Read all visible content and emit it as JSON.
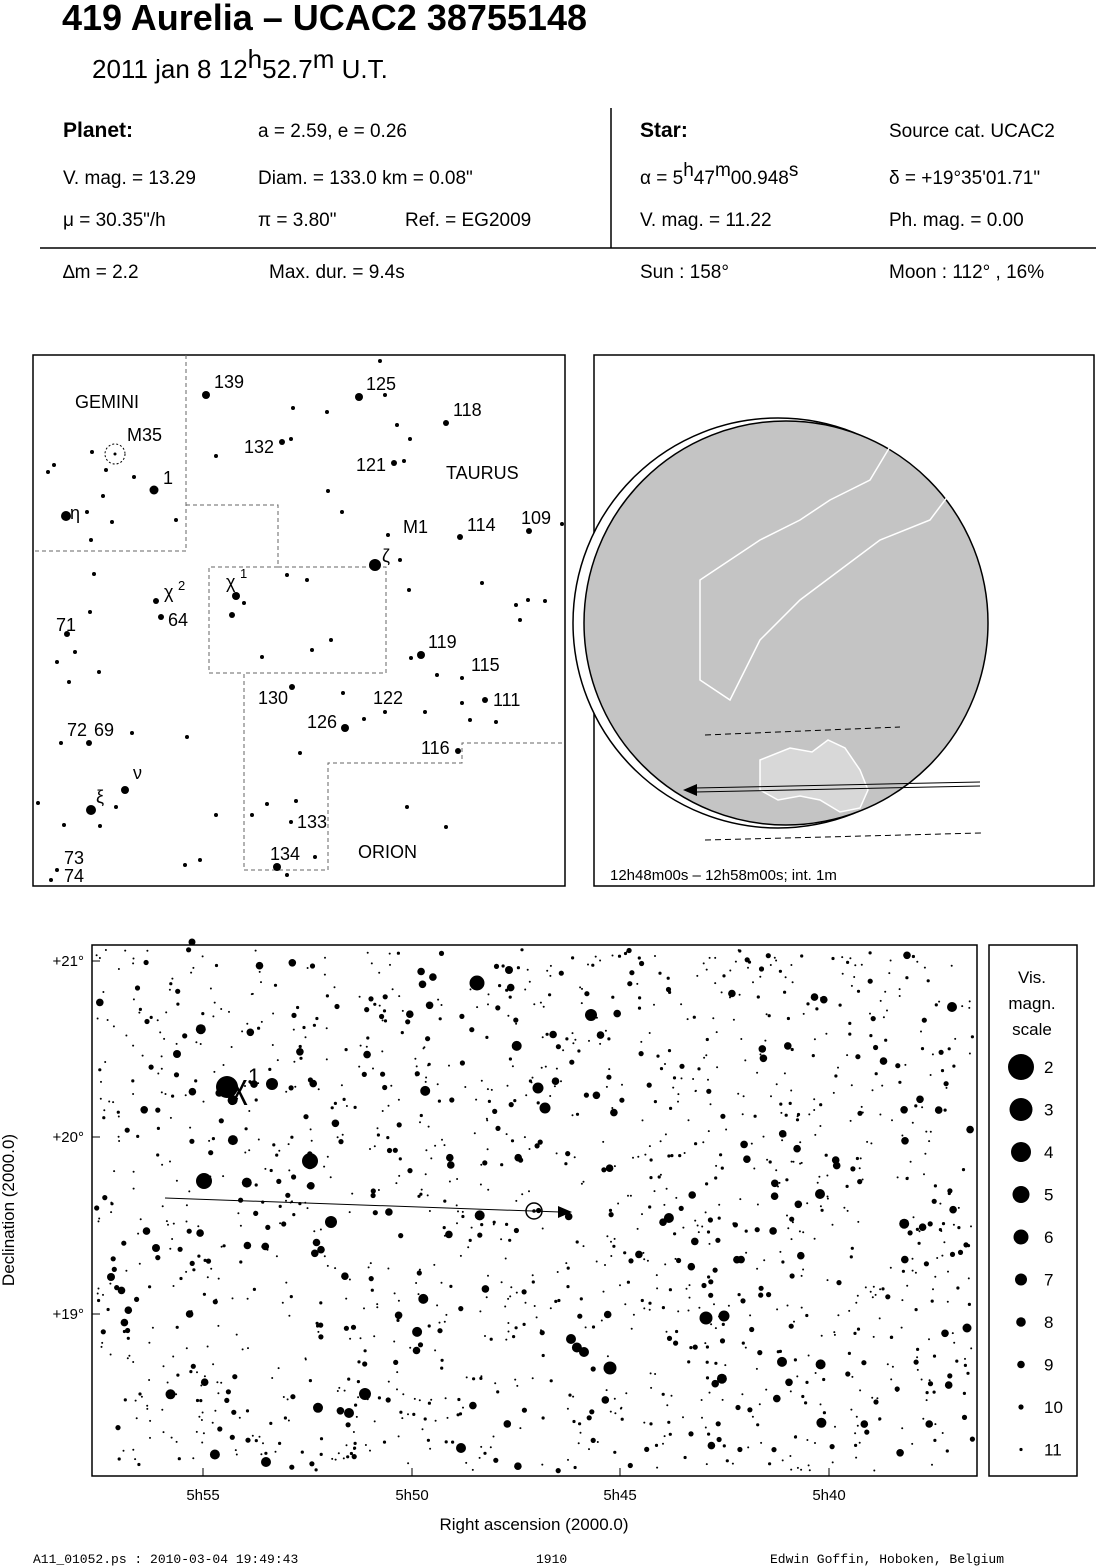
{
  "header": {
    "title": "419 Aurelia  –  UCAC2 38755148",
    "date": [
      "2011 jan  8  12",
      "h",
      "52.7",
      "m",
      " U.T."
    ]
  },
  "info": {
    "planet": {
      "label": "Planet:",
      "orbit": "a = 2.59, e = 0.26",
      "vmag": "V. mag. = 13.29",
      "diam": "Diam. = 133.0 km = 0.08\"",
      "motion": "μ =  30.35\"/h",
      "parallax": "π =  3.80\"",
      "ref": "Ref. = EG2009"
    },
    "star": {
      "label": "Star:",
      "source": "Source cat.  UCAC2",
      "alpha": [
        "α =  5",
        "h",
        "47",
        "m",
        "00.948",
        "s"
      ],
      "delta": "δ = +19°35'01.71\"",
      "vmag": "V. mag. = 11.22",
      "phmag": "Ph. mag. =  0.00"
    },
    "event": {
      "dm": "∆m = 2.2",
      "maxdur": "Max. dur. = 9.4s",
      "sun": "Sun : 158°",
      "moon": "Moon : 112° , 16%"
    }
  },
  "finder": {
    "labels": [
      "GEMINI",
      "TAURUS",
      "ORION",
      "M35",
      "M1",
      "139",
      "125",
      "118",
      "132",
      "121",
      "1",
      "η",
      "114",
      "109",
      "ζ",
      "χ",
      "1",
      "χ",
      "2",
      "64",
      "71",
      "119",
      "115",
      "111",
      "130",
      "122",
      "126",
      "72",
      "69",
      "116",
      "ν",
      "ξ",
      "133",
      "134",
      "73",
      "74"
    ]
  },
  "globe": {
    "caption": "12h48m00s – 12h58m00s; int.  1m"
  },
  "detail": {
    "star_label": [
      "χ",
      "1"
    ],
    "y_title": "Declination (2000.0)",
    "x_title": "Right ascension (2000.0)",
    "yticks": [
      "+21°",
      "+20°",
      "+19°"
    ],
    "xticks": [
      "5h55",
      "5h50",
      "5h45",
      "5h40"
    ],
    "scale": {
      "title": [
        "Vis.",
        "magn.",
        "scale"
      ],
      "mags": [
        "2",
        "3",
        "4",
        "5",
        "6",
        "7",
        "8",
        "9",
        "10",
        "11"
      ]
    }
  },
  "footer": {
    "file": "A11_01052.ps : 2010-03-04 19:49:43",
    "number": "1910",
    "author": "Edwin Goffin, Hoboken, Belgium"
  }
}
